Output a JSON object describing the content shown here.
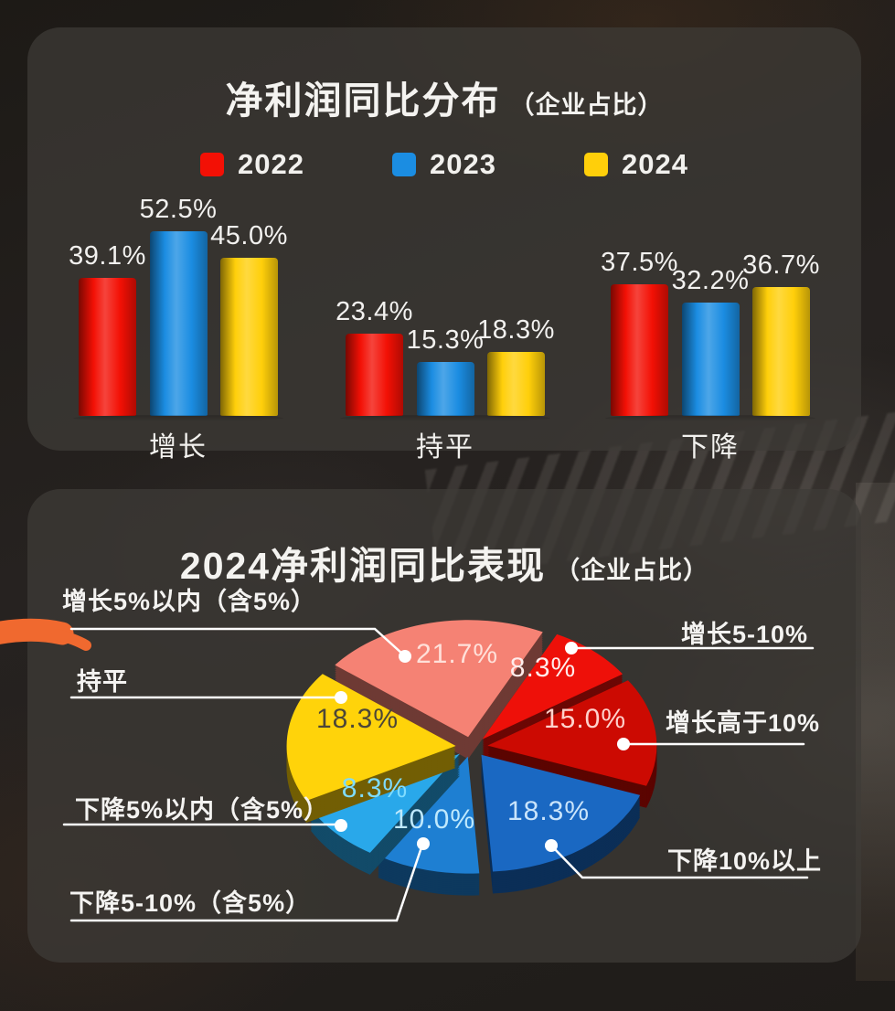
{
  "chart_data": [
    {
      "type": "bar",
      "title": "净利润同比分布",
      "title_suffix": "（企业占比）",
      "categories": [
        "增长",
        "持平",
        "下降"
      ],
      "series": [
        {
          "name": "2022",
          "color": "#f31005",
          "values": [
            39.1,
            23.4,
            37.5
          ]
        },
        {
          "name": "2023",
          "color": "#1b8de2",
          "values": [
            52.5,
            15.3,
            32.2
          ]
        },
        {
          "name": "2024",
          "color": "#ffcf0a",
          "values": [
            45.0,
            18.3,
            36.7
          ]
        }
      ],
      "value_suffix": "%",
      "ylim": [
        0,
        60
      ],
      "grid": false,
      "legend_position": "top"
    },
    {
      "type": "pie",
      "style": "3d-exploded",
      "title": "2024净利润同比表现",
      "title_suffix": "（企业占比）",
      "slices": [
        {
          "label": "增长5%以内（含5%）",
          "value": 21.7,
          "pct": "21.7%",
          "color": "#f58274"
        },
        {
          "label": "增长5-10%",
          "value": 8.3,
          "pct": "8.3%",
          "color": "#ee1009"
        },
        {
          "label": "增长高于10%",
          "value": 15.0,
          "pct": "15.0%",
          "color": "#cc0a02"
        },
        {
          "label": "下降10%以上",
          "value": 18.3,
          "pct": "18.3%",
          "color": "#1a68c2"
        },
        {
          "label": "下降5-10%（含5%）",
          "value": 10.0,
          "pct": "10.0%",
          "color": "#1e7fd2"
        },
        {
          "label": "下降5%以内（含5%）",
          "value": 8.3,
          "pct": "8.3%",
          "color": "#29a8ea"
        },
        {
          "label": "持平",
          "value": 18.3,
          "pct": "18.3%",
          "color": "#ffd30a"
        }
      ]
    }
  ],
  "annotation": {
    "type": "orange-marker-stroke",
    "color": "#f0692f"
  }
}
